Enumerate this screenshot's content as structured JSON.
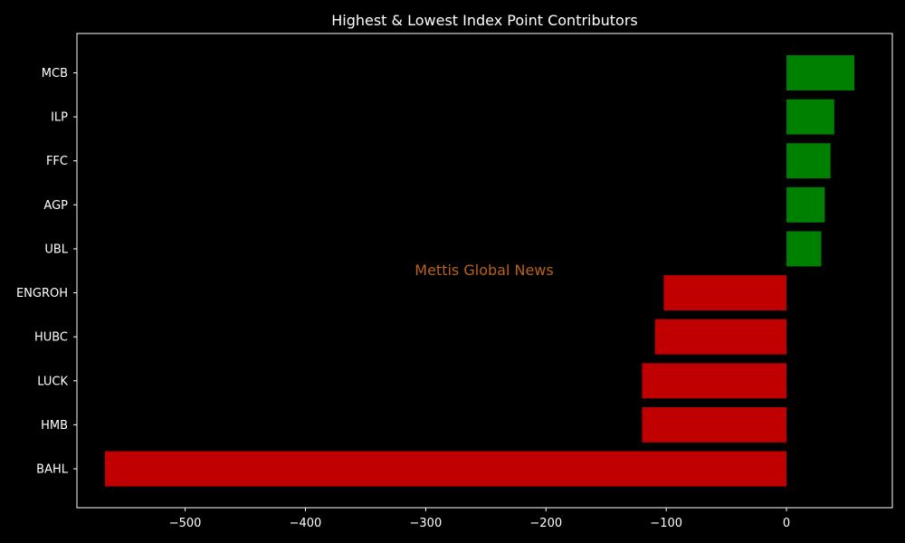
{
  "chart_data": {
    "type": "bar",
    "orientation": "horizontal",
    "title": "Highest & Lowest Index Point Contributors",
    "xlabel": "",
    "ylabel": "",
    "categories": [
      "MCB",
      "ILP",
      "FFC",
      "AGP",
      "UBL",
      "ENGROH",
      "HUBC",
      "LUCK",
      "HMB",
      "BAHL"
    ],
    "values": [
      56.5,
      39.7,
      36.6,
      31.8,
      28.9,
      -102.1,
      -109.4,
      -120.1,
      -120.1,
      -566.8
    ],
    "xlim": [
      -590,
      88
    ],
    "xticks": [
      -500,
      -400,
      -300,
      -200,
      -100,
      0
    ],
    "xtick_labels": [
      "−500",
      "−400",
      "−300",
      "−200",
      "−100",
      "0"
    ],
    "positive_color": "#008000",
    "negative_color": "#c00000",
    "background_color": "#000000",
    "grid": false
  },
  "watermark": {
    "text": "Mettis Global News",
    "color": "#b8621b"
  }
}
